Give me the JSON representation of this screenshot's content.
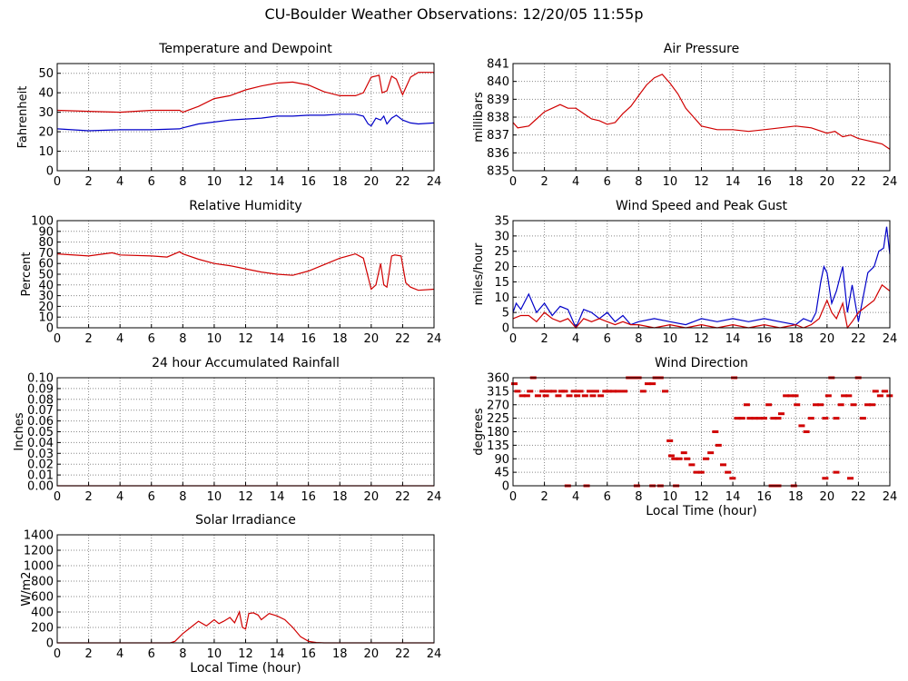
{
  "page_title": "CU-Boulder Weather Observations: 12/20/05 11:55p",
  "colors": {
    "red": "#d00000",
    "blue": "#0000c8",
    "grid": "#888888"
  },
  "chart_data": [
    {
      "id": "temp",
      "type": "line",
      "title": "Temperature and Dewpoint",
      "xlabel": "",
      "ylabel": "Fahrenheit",
      "xlim": [
        0,
        24
      ],
      "ylim": [
        0,
        55
      ],
      "xticks": [
        0,
        2,
        4,
        6,
        8,
        10,
        12,
        14,
        16,
        18,
        20,
        22,
        24
      ],
      "yticks": [
        0,
        10,
        20,
        30,
        40,
        50
      ],
      "grid": true,
      "series": [
        {
          "color": "red",
          "x": [
            0,
            2,
            4,
            6,
            7.8,
            8,
            9,
            10,
            11,
            12,
            13,
            14,
            15,
            16,
            17,
            18,
            19,
            19.5,
            20,
            20.5,
            20.7,
            21,
            21.3,
            21.6,
            22,
            22.5,
            23,
            24
          ],
          "y": [
            31,
            30.5,
            30,
            31,
            31,
            30,
            33,
            37,
            38.5,
            41.5,
            43.5,
            45,
            45.5,
            44,
            40.5,
            38.5,
            38.5,
            40,
            48,
            49,
            40,
            41,
            48.5,
            47,
            39,
            48,
            50.5,
            50.5
          ]
        },
        {
          "color": "blue",
          "x": [
            0,
            2,
            4,
            6,
            7.8,
            8,
            9,
            10,
            11,
            12,
            13,
            14,
            15,
            16,
            17,
            18,
            19,
            19.5,
            19.8,
            20,
            20.3,
            20.6,
            20.8,
            21,
            21.3,
            21.6,
            22,
            22.5,
            23,
            24
          ],
          "y": [
            21.5,
            20.5,
            21,
            21,
            21.5,
            22,
            24,
            25,
            26,
            26.5,
            27,
            28,
            28,
            28.5,
            28.5,
            29,
            29,
            28,
            24,
            23,
            27,
            26,
            28,
            24,
            27,
            28.5,
            26,
            24.5,
            24,
            24.5
          ]
        }
      ]
    },
    {
      "id": "pressure",
      "type": "line",
      "title": "Air Pressure",
      "xlabel": "",
      "ylabel": "millibars",
      "xlim": [
        0,
        24
      ],
      "ylim": [
        835,
        841
      ],
      "xticks": [
        0,
        2,
        4,
        6,
        8,
        10,
        12,
        14,
        16,
        18,
        20,
        22,
        24
      ],
      "yticks": [
        835,
        836,
        837,
        838,
        839,
        840,
        841
      ],
      "grid": true,
      "series": [
        {
          "color": "red",
          "x": [
            0,
            0.3,
            1,
            1.5,
            2,
            2.5,
            3,
            3.5,
            4,
            5,
            5.5,
            6,
            6.5,
            7,
            7.5,
            8,
            8.5,
            9,
            9.5,
            10,
            10.5,
            11,
            11.5,
            12,
            13,
            14,
            15,
            16,
            17,
            18,
            19,
            20,
            20.5,
            21,
            21.5,
            22,
            22.5,
            23,
            23.5,
            24
          ],
          "y": [
            837.7,
            837.4,
            837.5,
            837.9,
            838.3,
            838.5,
            838.7,
            838.5,
            838.5,
            837.9,
            837.8,
            837.6,
            837.7,
            838.2,
            838.6,
            839.2,
            839.8,
            840.2,
            840.4,
            839.9,
            839.3,
            838.5,
            838,
            837.5,
            837.3,
            837.3,
            837.2,
            837.3,
            837.4,
            837.5,
            837.4,
            837.1,
            837.2,
            836.9,
            837,
            836.8,
            836.7,
            836.6,
            836.5,
            836.2
          ]
        }
      ]
    },
    {
      "id": "rh",
      "type": "line",
      "title": "Relative Humidity",
      "xlabel": "",
      "ylabel": "Percent",
      "xlim": [
        0,
        24
      ],
      "ylim": [
        0,
        100
      ],
      "xticks": [
        0,
        2,
        4,
        6,
        8,
        10,
        12,
        14,
        16,
        18,
        20,
        22,
        24
      ],
      "yticks": [
        0,
        10,
        20,
        30,
        40,
        50,
        60,
        70,
        80,
        90,
        100
      ],
      "grid": true,
      "series": [
        {
          "color": "red",
          "x": [
            0,
            2,
            3.5,
            4,
            6,
            7,
            7.8,
            8,
            9,
            10,
            11,
            12,
            13,
            14,
            15,
            16,
            17,
            18,
            19,
            19.5,
            20,
            20.3,
            20.6,
            20.8,
            21,
            21.3,
            21.5,
            21.9,
            22.2,
            22.5,
            23,
            24
          ],
          "y": [
            69,
            67,
            70,
            68,
            67,
            66,
            71,
            69,
            64,
            60,
            58,
            55,
            52,
            50,
            49,
            53,
            59,
            65,
            69,
            65,
            36,
            40,
            60,
            40,
            38,
            67,
            68,
            67,
            42,
            38,
            35,
            36
          ]
        }
      ]
    },
    {
      "id": "wind",
      "type": "line",
      "title": "Wind Speed and Peak Gust",
      "xlabel": "",
      "ylabel": "miles/hour",
      "xlim": [
        0,
        24
      ],
      "ylim": [
        0,
        35
      ],
      "xticks": [
        0,
        2,
        4,
        6,
        8,
        10,
        12,
        14,
        16,
        18,
        20,
        22,
        24
      ],
      "yticks": [
        0,
        5,
        10,
        15,
        20,
        25,
        30,
        35
      ],
      "grid": true,
      "series": [
        {
          "color": "blue",
          "x": [
            0,
            0.2,
            0.5,
            1,
            1.5,
            2,
            2.5,
            3,
            3.5,
            4,
            4.5,
            5,
            5.5,
            6,
            6.5,
            7,
            7.5,
            8,
            9,
            10,
            11,
            12,
            13,
            14,
            15,
            16,
            17,
            18,
            18.5,
            19,
            19.3,
            19.6,
            19.8,
            20,
            20.3,
            20.6,
            21,
            21.3,
            21.6,
            22,
            22.3,
            22.6,
            23,
            23.3,
            23.6,
            23.8,
            24
          ],
          "y": [
            5,
            8,
            6,
            11,
            5,
            8,
            4,
            7,
            6,
            0,
            6,
            5,
            3,
            5,
            2,
            4,
            1,
            2,
            3,
            2,
            1,
            3,
            2,
            3,
            2,
            3,
            2,
            1,
            3,
            2,
            5,
            15,
            20,
            18,
            8,
            12,
            20,
            5,
            14,
            2,
            10,
            18,
            20,
            25,
            26,
            33,
            24
          ]
        },
        {
          "color": "red",
          "x": [
            0,
            0.5,
            1,
            1.5,
            2,
            2.5,
            3,
            3.5,
            4,
            4.5,
            5,
            5.5,
            6,
            6.5,
            7,
            7.5,
            8,
            9,
            10,
            11,
            12,
            13,
            14,
            15,
            16,
            17,
            18,
            18.5,
            19,
            19.5,
            20,
            20.3,
            20.6,
            21,
            21.3,
            21.6,
            22,
            22.5,
            23,
            23.5,
            24
          ],
          "y": [
            3,
            4,
            4,
            2,
            5,
            3,
            2,
            3,
            0,
            3,
            2,
            3,
            2,
            1,
            2,
            1,
            1,
            0,
            1,
            0,
            1,
            0,
            1,
            0,
            1,
            0,
            1,
            0,
            1,
            3,
            9,
            5,
            3,
            8,
            0,
            2,
            5,
            7,
            9,
            14,
            12
          ]
        }
      ]
    },
    {
      "id": "rain",
      "type": "line",
      "title": "24 hour Accumulated Rainfall",
      "xlabel": "",
      "ylabel": "Inches",
      "xlim": [
        0,
        24
      ],
      "ylim": [
        0,
        0.1
      ],
      "xticks": [
        0,
        2,
        4,
        6,
        8,
        10,
        12,
        14,
        16,
        18,
        20,
        22,
        24
      ],
      "yticks": [
        "0.00",
        "0.01",
        "0.02",
        "0.03",
        "0.04",
        "0.05",
        "0.06",
        "0.07",
        "0.08",
        "0.09",
        "0.10"
      ],
      "grid": true,
      "series": [
        {
          "color": "red",
          "x": [
            0,
            24
          ],
          "y": [
            0,
            0
          ]
        }
      ]
    },
    {
      "id": "winddir",
      "type": "scatter",
      "title": "Wind Direction",
      "xlabel": "Local Time (hour)",
      "ylabel": "degrees",
      "xlim": [
        0,
        24
      ],
      "ylim": [
        0,
        360
      ],
      "xticks": [
        0,
        2,
        4,
        6,
        8,
        10,
        12,
        14,
        16,
        18,
        20,
        22,
        24
      ],
      "yticks": [
        0,
        45,
        90,
        135,
        180,
        225,
        270,
        315,
        360
      ],
      "grid": true,
      "series": [
        {
          "color": "red",
          "x": [
            0,
            0.2,
            0.5,
            0.8,
            1,
            1.2,
            1.5,
            1.8,
            2,
            2.2,
            2.5,
            2.8,
            3,
            3.2,
            3.5,
            3.8,
            4,
            4.2,
            4.5,
            4.8,
            5,
            5.2,
            5.5,
            5.8,
            6,
            6.3,
            6.6,
            7,
            7.3,
            7.6,
            7.9,
            8.2,
            8.5,
            8.8,
            9,
            9.3,
            9.6,
            9.9,
            10,
            10.2,
            10.5,
            10.8,
            11,
            11.3,
            11.6,
            11.9,
            12.2,
            12.5,
            12.8,
            13,
            13.3,
            13.6,
            13.9,
            14,
            14.2,
            14.5,
            14.8,
            15,
            15.3,
            15.6,
            15.9,
            16.2,
            16.5,
            16.8,
            17,
            17.3,
            17.6,
            17.9,
            18,
            18.3,
            18.6,
            18.9,
            19.2,
            19.5,
            19.8,
            20,
            20.2,
            20.5,
            20.8,
            21,
            21.3,
            21.6,
            21.9,
            22.2,
            22.5,
            22.8,
            23,
            23.3,
            23.6,
            23.9,
            3.4,
            4.6,
            7.8,
            8.8,
            9.3,
            10.3,
            16.4,
            16.8,
            17.8,
            19.8,
            20.5,
            21.4
          ],
          "y": [
            340,
            315,
            300,
            300,
            315,
            360,
            300,
            315,
            300,
            315,
            315,
            300,
            315,
            315,
            300,
            315,
            300,
            315,
            300,
            315,
            300,
            315,
            300,
            315,
            315,
            315,
            315,
            315,
            360,
            360,
            360,
            315,
            340,
            340,
            360,
            360,
            315,
            150,
            100,
            90,
            90,
            110,
            90,
            70,
            45,
            45,
            90,
            110,
            180,
            135,
            70,
            45,
            25,
            360,
            225,
            225,
            270,
            225,
            225,
            225,
            225,
            270,
            225,
            225,
            240,
            300,
            300,
            300,
            270,
            200,
            180,
            225,
            270,
            270,
            225,
            300,
            360,
            225,
            270,
            300,
            300,
            270,
            360,
            225,
            270,
            270,
            315,
            300,
            315,
            300,
            0,
            0,
            0,
            0,
            0,
            0,
            0,
            0,
            0,
            25,
            45,
            25
          ]
        }
      ]
    },
    {
      "id": "solar",
      "type": "line",
      "title": "Solar Irradiance",
      "xlabel": "Local Time (hour)",
      "ylabel": "W/m2",
      "xlim": [
        0,
        24
      ],
      "ylim": [
        0,
        1400
      ],
      "xticks": [
        0,
        2,
        4,
        6,
        8,
        10,
        12,
        14,
        16,
        18,
        20,
        22,
        24
      ],
      "yticks": [
        0,
        200,
        400,
        600,
        800,
        1000,
        1200,
        1400
      ],
      "grid": true,
      "series": [
        {
          "color": "red",
          "x": [
            0,
            7.2,
            7.5,
            8,
            8.5,
            9,
            9.5,
            10,
            10.3,
            10.6,
            11,
            11.3,
            11.6,
            11.8,
            12,
            12.2,
            12.5,
            12.8,
            13,
            13.5,
            14,
            14.5,
            15,
            15.5,
            16,
            16.5,
            17,
            24
          ],
          "y": [
            0,
            0,
            20,
            120,
            200,
            280,
            220,
            300,
            250,
            280,
            330,
            260,
            400,
            200,
            180,
            380,
            390,
            360,
            300,
            380,
            350,
            300,
            200,
            80,
            20,
            5,
            0,
            0
          ]
        }
      ]
    }
  ]
}
